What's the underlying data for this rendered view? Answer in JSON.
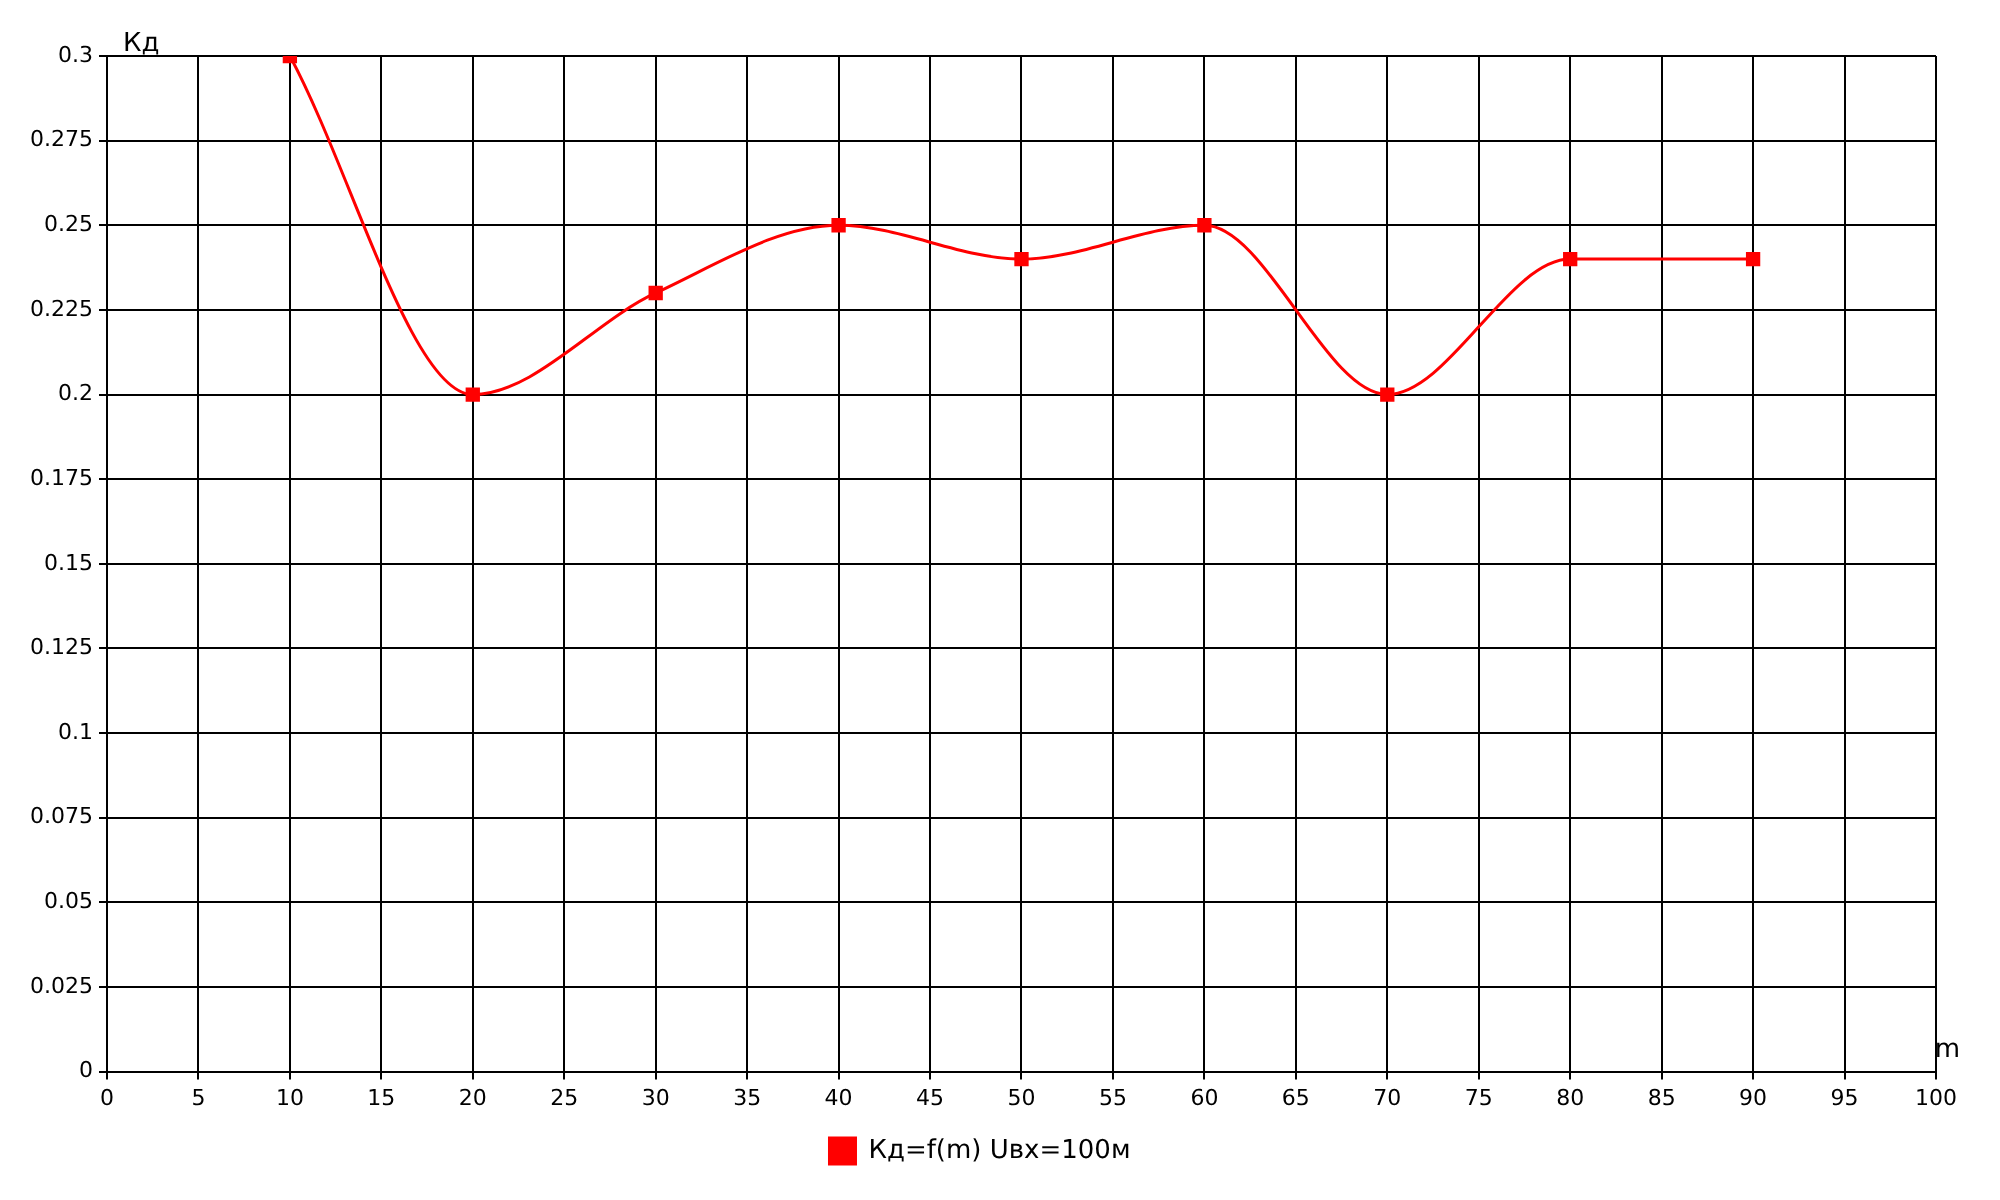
{
  "chart_data": {
    "type": "line",
    "xlabel": "m",
    "ylabel": "Кд",
    "x": [
      10,
      20,
      30,
      40,
      50,
      60,
      70,
      80,
      90
    ],
    "series": [
      {
        "name": "Кд=f(m) Uвх=100м",
        "color": "#ff0000",
        "values": [
          0.3,
          0.2,
          0.23,
          0.25,
          0.24,
          0.25,
          0.2,
          0.24,
          0.24
        ]
      }
    ],
    "xlim": [
      0,
      100
    ],
    "xticks": [
      0,
      5,
      10,
      15,
      20,
      25,
      30,
      35,
      40,
      45,
      50,
      55,
      60,
      65,
      70,
      75,
      80,
      85,
      90,
      95,
      100
    ],
    "ylim": [
      0,
      0.3
    ],
    "yticks": [
      0,
      0.025,
      0.05,
      0.075,
      0.1,
      0.125,
      0.15,
      0.175,
      0.2,
      0.225,
      0.25,
      0.275,
      0.3
    ],
    "grid": true,
    "legend": "bottom",
    "marker": "square",
    "line_style": "solid"
  }
}
